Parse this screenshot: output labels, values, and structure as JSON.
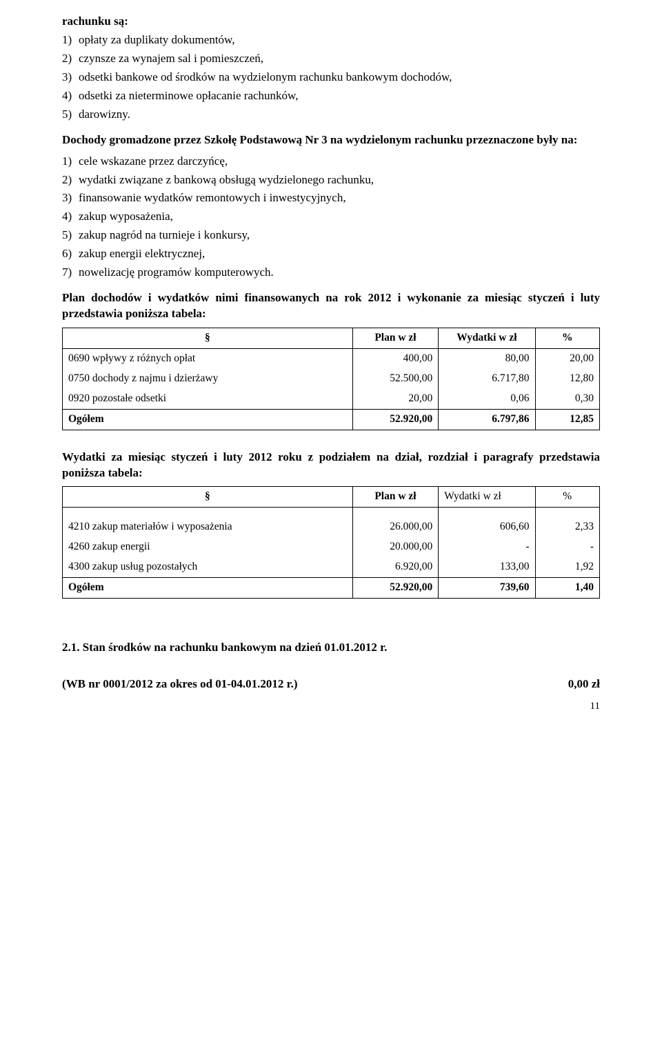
{
  "intro_heading": "rachunku są:",
  "list_a": [
    {
      "n": "1)",
      "t": "opłaty za duplikaty dokumentów,"
    },
    {
      "n": "2)",
      "t": "czynsze za wynajem sal i pomieszczeń,"
    },
    {
      "n": "3)",
      "t": "odsetki bankowe od środków na wydzielonym rachunku bankowym dochodów,"
    },
    {
      "n": "4)",
      "t": "odsetki za nieterminowe opłacanie rachunków,"
    },
    {
      "n": "5)",
      "t": "darowizny."
    }
  ],
  "para_b_heading": "Dochody gromadzone przez Szkołę Podstawową Nr 3 na wydzielonym rachunku przeznaczone były na:",
  "list_b": [
    {
      "n": "1)",
      "t": "cele wskazane przez darczyńcę,"
    },
    {
      "n": "2)",
      "t": "wydatki związane z bankową obsługą wydzielonego rachunku,"
    },
    {
      "n": "3)",
      "t": "finansowanie wydatków remontowych i inwestycyjnych,"
    },
    {
      "n": "4)",
      "t": "zakup wyposażenia,"
    },
    {
      "n": "5)",
      "t": "zakup nagród na turnieje i konkursy,"
    },
    {
      "n": "6)",
      "t": "zakup energii elektrycznej,"
    },
    {
      "n": "7)",
      "t": "nowelizację programów komputerowych."
    }
  ],
  "table1_caption": "Plan dochodów i wydatków nimi finansowanych na rok 2012 i wykonanie za miesiąc styczeń i luty przedstawia poniższa tabela:",
  "table_headers": {
    "c0": "§",
    "c1": "Plan w zł",
    "c2": "Wydatki w zł",
    "c3": "%"
  },
  "table1": {
    "rows": [
      {
        "label": "0690 wpływy z różnych opłat",
        "plan": "400,00",
        "wyd": "80,00",
        "pct": "20,00"
      },
      {
        "label": "0750 dochody z najmu i dzierżawy",
        "plan": "52.500,00",
        "wyd": "6.717,80",
        "pct": "12,80"
      },
      {
        "label": "0920 pozostałe odsetki",
        "plan": "20,00",
        "wyd": "0,06",
        "pct": "0,30"
      }
    ],
    "total": {
      "label": "Ogółem",
      "plan": "52.920,00",
      "wyd": "6.797,86",
      "pct": "12,85"
    }
  },
  "table2_caption": "Wydatki za miesiąc styczeń i luty 2012 roku z podziałem na dział, rozdział i paragrafy przedstawia poniższa tabela:",
  "table2": {
    "header_c2": "Wydatki w zł",
    "rows": [
      {
        "label": "4210 zakup materiałów i wyposażenia",
        "plan": "26.000,00",
        "wyd": "606,60",
        "pct": "2,33"
      },
      {
        "label": "4260 zakup energii",
        "plan": "20.000,00",
        "wyd": "-",
        "pct": "-"
      },
      {
        "label": "4300 zakup usług pozostałych",
        "plan": "6.920,00",
        "wyd": "133,00",
        "pct": "1,92"
      }
    ],
    "total": {
      "label": "Ogółem",
      "plan": "52.920,00",
      "wyd": "739,60",
      "pct": "1,40"
    }
  },
  "footer": {
    "line1": "2.1. Stan środków na rachunku bankowym na dzień 01.01.2012 r.",
    "line2_left": " (WB nr 0001/2012 za okres od 01-04.01.2012 r.)",
    "line2_right": "0,00 zł"
  },
  "page_number": "11"
}
